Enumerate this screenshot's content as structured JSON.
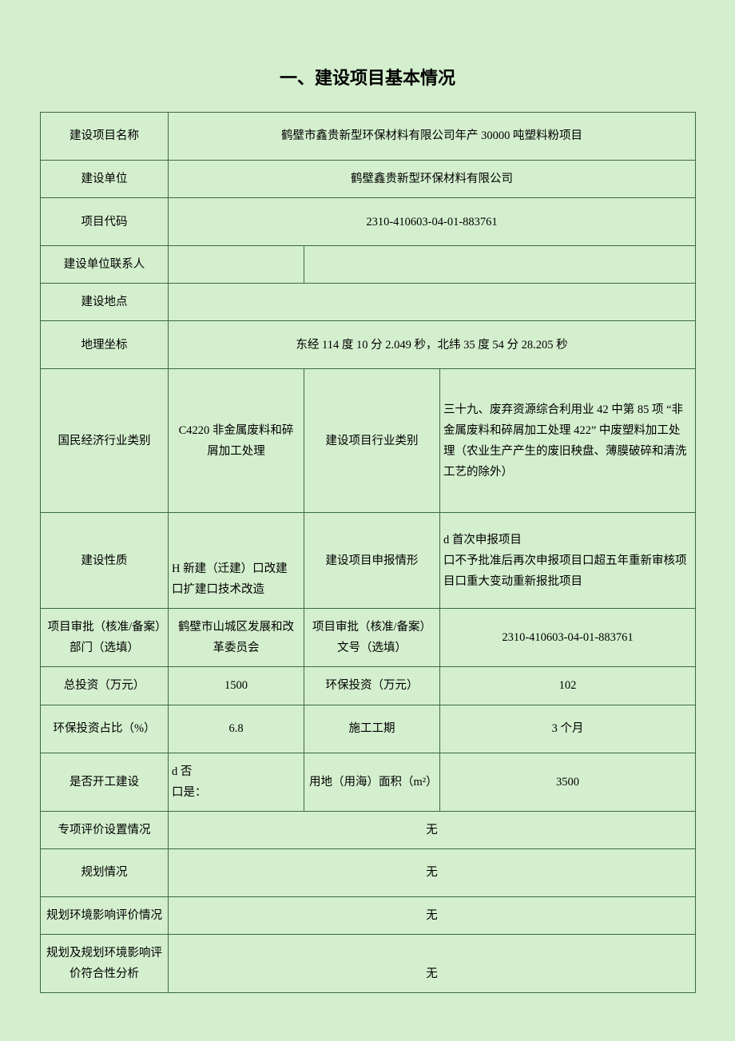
{
  "colors": {
    "page_bg": "#d4efce",
    "border": "#3a6b3a",
    "text": "#000000"
  },
  "title": "一、建设项目基本情况",
  "rows": {
    "project_name_label": "建设项目名称",
    "project_name_value": "鹤壁市鑫贵新型环保材料有限公司年产 30000 吨塑料粉项目",
    "build_unit_label": "建设单位",
    "build_unit_value": "鹤壁鑫贵新型环保材料有限公司",
    "project_code_label": "项目代码",
    "project_code_value": "2310-410603-04-01-883761",
    "contact_label": "建设单位联系人",
    "contact_value_a": "",
    "contact_value_b": "",
    "build_addr_label": "建设地点",
    "build_addr_value": "",
    "coord_label": "地理坐标",
    "coord_value": "东经 114 度 10 分 2.049 秒，北纬 35 度 54 分 28.205 秒",
    "econ_cat_label": "国民经济行业类别",
    "econ_cat_value": "C4220 非金属废料和碎屑加工处理",
    "industry_cat_label": "建设项目行业类别",
    "industry_cat_value": "三十九、废弃资源综合利用业 42 中第 85 项 “非金属废料和碎屑加工处理 422” 中废塑料加工处理（农业生产产生的废旧秧盘、薄膜破碎和清洗工艺的除外）",
    "build_nature_label": "建设性质",
    "build_nature_value": "H 新建（迁建）口改建口扩建口技术改造",
    "declare_type_label": "建设项目申报情形",
    "declare_type_value": "d 首次申报项目\n口不予批准后再次申报项目口超五年重新审核项目口重大变动重新报批项目",
    "approval_dept_label": "项目审批（核准/备案）部门（选填）",
    "approval_dept_value": "鹤壁市山城区发展和改革委员会",
    "approval_no_label": "项目审批（核准/备案）文号（选填）",
    "approval_no_value": "2310-410603-04-01-883761",
    "total_invest_label": "总投资（万元）",
    "total_invest_value": "1500",
    "env_invest_label": "环保投资（万元）",
    "env_invest_value": "102",
    "env_ratio_label": "环保投资占比（%）",
    "env_ratio_value": "6.8",
    "duration_label": "施工工期",
    "duration_value": "3 个月",
    "started_label": "是否开工建设",
    "started_value": "d 否\n口是：",
    "land_area_label": "用地（用海）面积（m²）",
    "land_area_value": "3500",
    "special_eval_label": "专项评价设置情况",
    "special_eval_value": "无",
    "planning_label": "规划情况",
    "planning_value": "无",
    "plan_env_eval_label": "规划环境影响评价情况",
    "plan_env_eval_value": "无",
    "plan_compliance_label": "规划及规划环境影响评价符合性分析",
    "plan_compliance_value": "无"
  }
}
